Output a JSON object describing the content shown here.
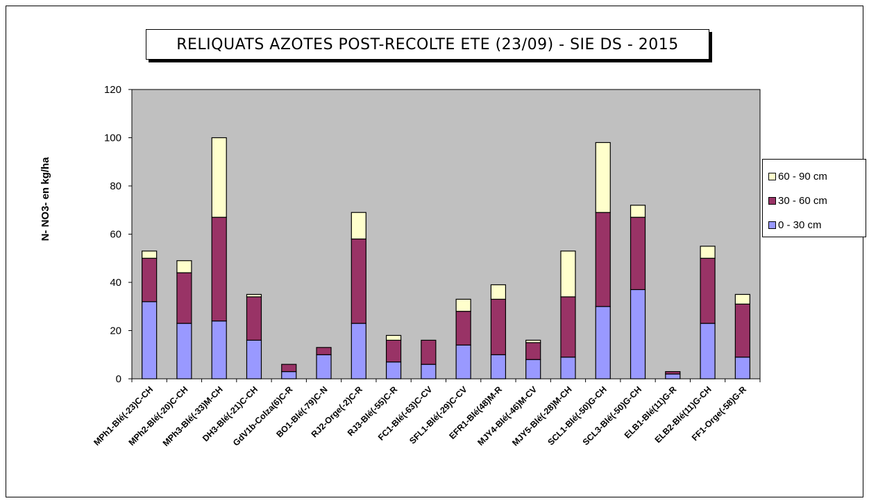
{
  "chart_data": {
    "type": "bar",
    "stacked": true,
    "title": "RELIQUATS AZOTES POST-RECOLTE ETE (23/09) - SIE DS - 2015",
    "xlabel": "",
    "ylabel": "N- NO3- en kg/ha",
    "ylim": [
      0,
      120
    ],
    "yticks": [
      "0",
      "20",
      "40",
      "60",
      "80",
      "100",
      "120"
    ],
    "grid": false,
    "legend_position": "right",
    "plot_background": "#c0c0c0",
    "categories": [
      "MPh1-Blé(-23)C-CH",
      "MPh2-Blé(-20)C-CH",
      "MPh3-Blé(-33)M-CH",
      "DH3-Blé(-21)C-CH",
      "GdV1b-Colza(6)C-R",
      "BO1-Blé(-79)C-N",
      "RJ2-Orge(-2)C-R",
      "RJ3-Blé(-55)C-R",
      "FC1-Blé(-63)C-CV",
      "SFL1-Blé(-29)C-CV",
      "EFR1-Blé(48)M-R",
      "MJY4-Blé(-46)M-CV",
      "MJY5-Blé(-28)M-CH",
      "SCL1-Blé(-50)G-CH",
      "SCL3-Blé(-50)G-CH",
      "ELB1-Blé(11)G-R",
      "ELB2-Blé(11)G-CH",
      "FF1-Orge(-58)G-R"
    ],
    "series": [
      {
        "name": "0 - 30 cm",
        "color": "#9999ff",
        "values": [
          32,
          23,
          24,
          16,
          3,
          10,
          23,
          7,
          6,
          14,
          10,
          8,
          9,
          30,
          37,
          2,
          23,
          9
        ]
      },
      {
        "name": "30 - 60 cm",
        "color": "#993366",
        "values": [
          18,
          21,
          43,
          18,
          3,
          3,
          35,
          9,
          10,
          14,
          23,
          7,
          25,
          39,
          30,
          1,
          27,
          22
        ]
      },
      {
        "name": "60 - 90 cm",
        "color": "#ffffcc",
        "values": [
          3,
          5,
          33,
          1,
          0,
          0,
          11,
          2,
          0,
          5,
          6,
          1,
          19,
          29,
          5,
          0,
          5,
          4
        ]
      }
    ],
    "legend_order": [
      "60 - 90 cm",
      "30 - 60 cm",
      "0 - 30 cm"
    ]
  }
}
